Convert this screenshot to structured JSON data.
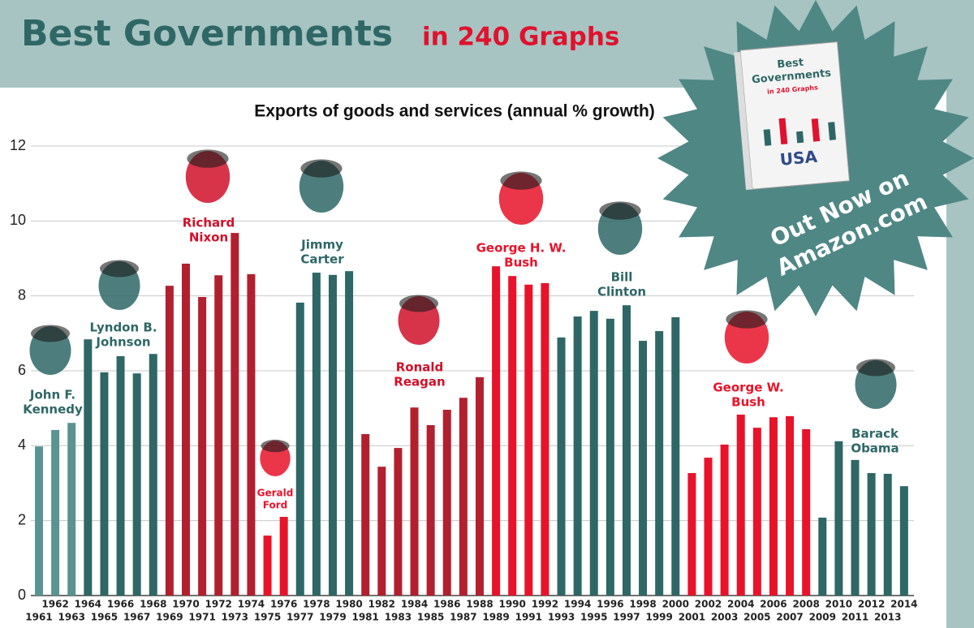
{
  "header": {
    "title": "Best Governments",
    "subtitle": "in 240 Graphs"
  },
  "chart_data": {
    "type": "bar",
    "title": "Exports of goods and services (annual % growth)",
    "categories": [
      "1961",
      "1962",
      "1963",
      "1964",
      "1965",
      "1966",
      "1967",
      "1968",
      "1969",
      "1970",
      "1971",
      "1972",
      "1973",
      "1974",
      "1975",
      "1976",
      "1977",
      "1978",
      "1979",
      "1980",
      "1981",
      "1982",
      "1983",
      "1984",
      "1985",
      "1986",
      "1987",
      "1988",
      "1989",
      "1990",
      "1991",
      "1992",
      "1993",
      "1994",
      "1995",
      "1996",
      "1997",
      "1998",
      "1999",
      "2000",
      "2001",
      "2002",
      "2003",
      "2004",
      "2005",
      "2006",
      "2007",
      "2008",
      "2009",
      "2010",
      "2011",
      "2012",
      "2013",
      "2014"
    ],
    "values": [
      3.98,
      4.42,
      4.61,
      6.84,
      5.96,
      6.39,
      5.93,
      6.45,
      8.27,
      8.86,
      7.97,
      8.55,
      9.68,
      8.58,
      1.6,
      2.1,
      7.82,
      8.62,
      8.56,
      8.66,
      4.31,
      3.44,
      3.94,
      5.02,
      4.55,
      4.96,
      5.28,
      5.83,
      8.79,
      8.53,
      8.3,
      8.34,
      6.89,
      7.45,
      7.6,
      7.39,
      7.75,
      6.8,
      7.06,
      7.43,
      3.27,
      3.68,
      4.03,
      4.83,
      4.48,
      4.76,
      4.79,
      4.44,
      2.08,
      4.12,
      3.62,
      3.27,
      3.25,
      2.92
    ],
    "colors": [
      "#5b9393",
      "#5b9393",
      "#5b9393",
      "#2e6766",
      "#2e6766",
      "#2e6766",
      "#2e6766",
      "#2e6766",
      "#b2202f",
      "#b2202f",
      "#b2202f",
      "#b2202f",
      "#b2202f",
      "#b2202f",
      "#e8132a",
      "#e8132a",
      "#2e6766",
      "#2e6766",
      "#2e6766",
      "#2e6766",
      "#b2202f",
      "#b2202f",
      "#b2202f",
      "#b2202f",
      "#b2202f",
      "#b2202f",
      "#b2202f",
      "#b2202f",
      "#e8132a",
      "#e8132a",
      "#e8132a",
      "#e8132a",
      "#2e6766",
      "#2e6766",
      "#2e6766",
      "#2e6766",
      "#2e6766",
      "#2e6766",
      "#2e6766",
      "#2e6766",
      "#e8132a",
      "#e8132a",
      "#e8132a",
      "#e8132a",
      "#e8132a",
      "#e8132a",
      "#e8132a",
      "#e8132a",
      "#2e6766",
      "#2e6766",
      "#2e6766",
      "#2e6766",
      "#2e6766",
      "#2e6766"
    ],
    "ylim": [
      0,
      12
    ],
    "yticks": [
      0,
      2,
      4,
      6,
      8,
      10,
      12
    ],
    "grid": true,
    "annotations": [
      {
        "lines": [
          "John F.",
          "Kennedy"
        ],
        "color": "#2e6766"
      },
      {
        "lines": [
          "Lyndon B.",
          "Johnson"
        ],
        "color": "#2e6766"
      },
      {
        "lines": [
          "Richard",
          "Nixon"
        ],
        "color": "#d0102a"
      },
      {
        "lines": [
          "Gerald",
          "Ford"
        ],
        "color": "#e8132a"
      },
      {
        "lines": [
          "Jimmy",
          "Carter"
        ],
        "color": "#2e6766"
      },
      {
        "lines": [
          "Ronald",
          "Reagan"
        ],
        "color": "#d0102a"
      },
      {
        "lines": [
          "George H. W.",
          "Bush"
        ],
        "color": "#e8132a"
      },
      {
        "lines": [
          "Bill",
          "Clinton"
        ],
        "color": "#2e6766"
      },
      {
        "lines": [
          "George W.",
          "Bush"
        ],
        "color": "#e8132a"
      },
      {
        "lines": [
          "Barack",
          "Obama"
        ],
        "color": "#2e6766"
      }
    ]
  },
  "promo": {
    "book_lines": [
      "Best",
      "Governments",
      "in 240 Graphs"
    ],
    "book_country": "USA",
    "lines": [
      "Out Now on",
      "Amazon.com"
    ]
  }
}
